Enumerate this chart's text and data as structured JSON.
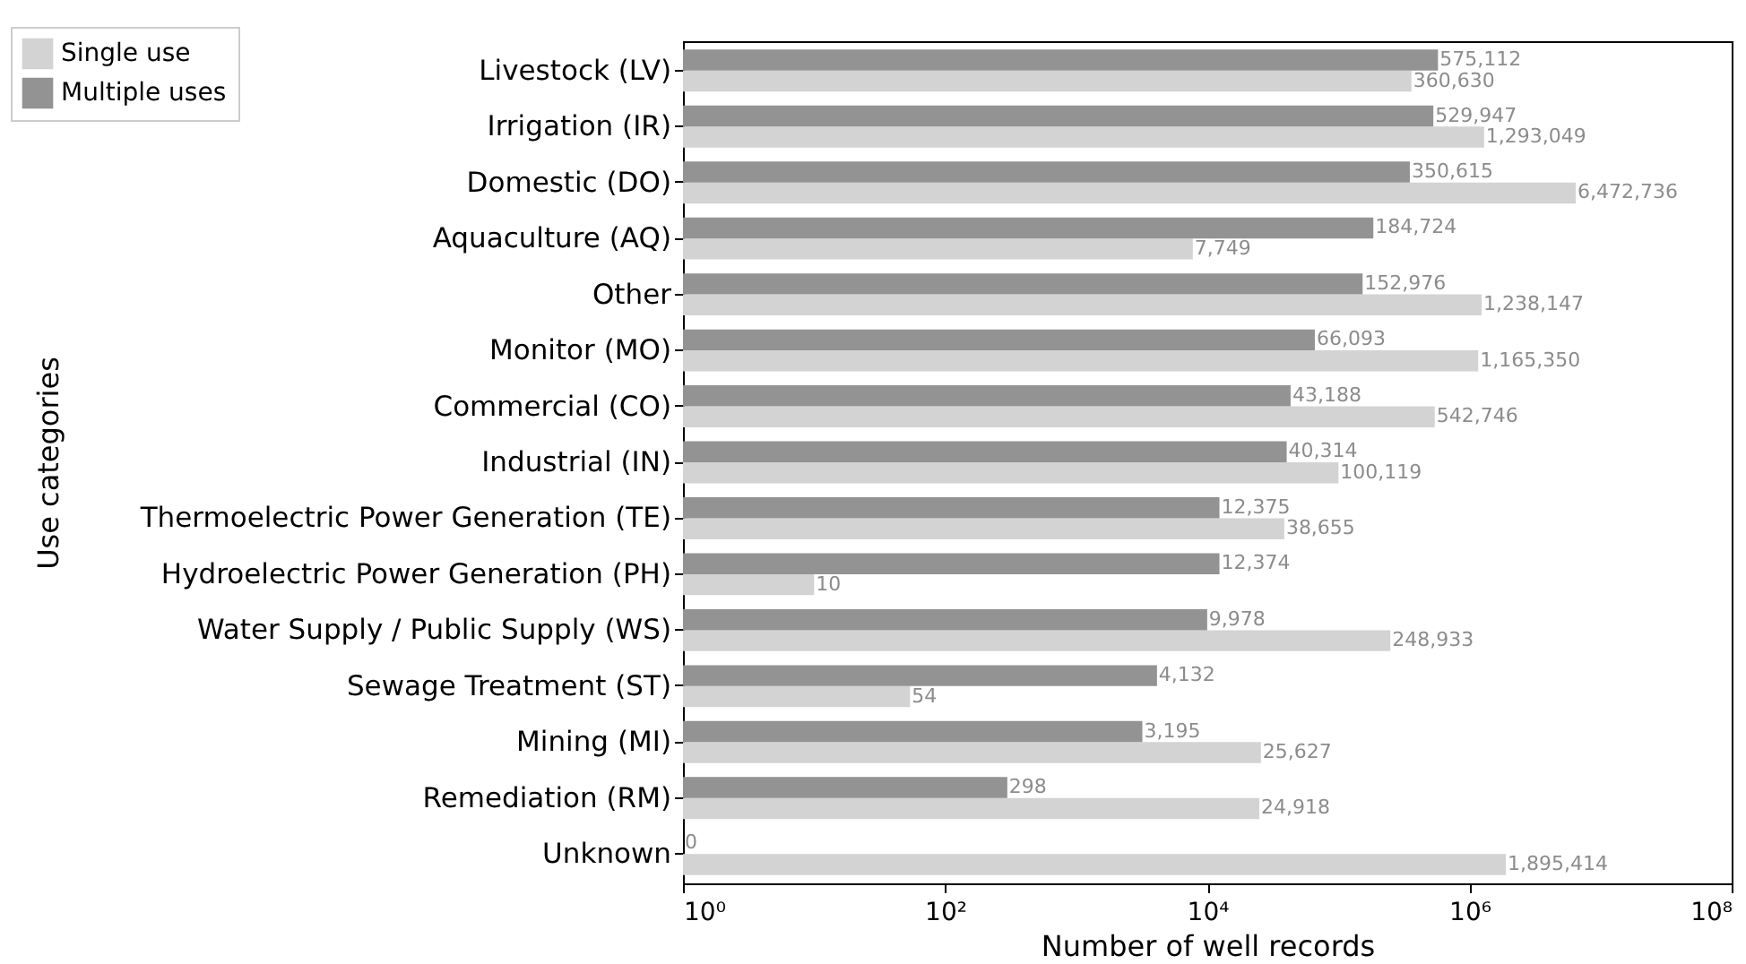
{
  "chart_data": {
    "type": "bar",
    "orientation": "horizontal",
    "xlabel": "Number of well records",
    "ylabel": "Use categories",
    "categories": [
      "Livestock (LV)",
      "Irrigation (IR)",
      "Domestic (DO)",
      "Aquaculture (AQ)",
      "Other",
      "Monitor (MO)",
      "Commercial (CO)",
      "Industrial (IN)",
      "Thermoelectric Power Generation (TE)",
      "Hydroelectric Power Generation (PH)",
      "Water Supply / Public Supply (WS)",
      "Sewage Treatment (ST)",
      "Mining (MI)",
      "Remediation (RM)",
      "Unknown"
    ],
    "series": [
      {
        "name": "Single use",
        "color": "#d3d3d3",
        "values": [
          360630,
          1293049,
          6472736,
          7749,
          1238147,
          1165350,
          542746,
          100119,
          38655,
          10,
          248933,
          54,
          25627,
          24918,
          1895414
        ],
        "value_labels": [
          "360,630",
          "1,293,049",
          "6,472,736",
          "7,749",
          "1,238,147",
          "1,165,350",
          "542,746",
          "100,119",
          "38,655",
          "10",
          "248,933",
          "54",
          "25,627",
          "24,918",
          "1,895,414"
        ]
      },
      {
        "name": "Multiple uses",
        "color": "#939393",
        "values": [
          575112,
          529947,
          350615,
          184724,
          152976,
          66093,
          43188,
          40314,
          12375,
          12374,
          9978,
          4132,
          3195,
          298,
          null
        ],
        "value_labels": [
          "575,112",
          "529,947",
          "350,615",
          "184,724",
          "152,976",
          "66,093",
          "43,188",
          "40,314",
          "12,375",
          "12,374",
          "9,978",
          "4,132",
          "3,195",
          "298",
          "0"
        ]
      }
    ],
    "log": "x",
    "xlim": [
      1,
      100000000
    ],
    "xticks": [
      {
        "value": 1,
        "label": "10⁰"
      },
      {
        "value": 100,
        "label": "10²"
      },
      {
        "value": 10000,
        "label": "10⁴"
      },
      {
        "value": 1000000,
        "label": "10⁶"
      },
      {
        "value": 100000000,
        "label": "10⁸"
      }
    ],
    "legend": "top left",
    "grid": false
  }
}
